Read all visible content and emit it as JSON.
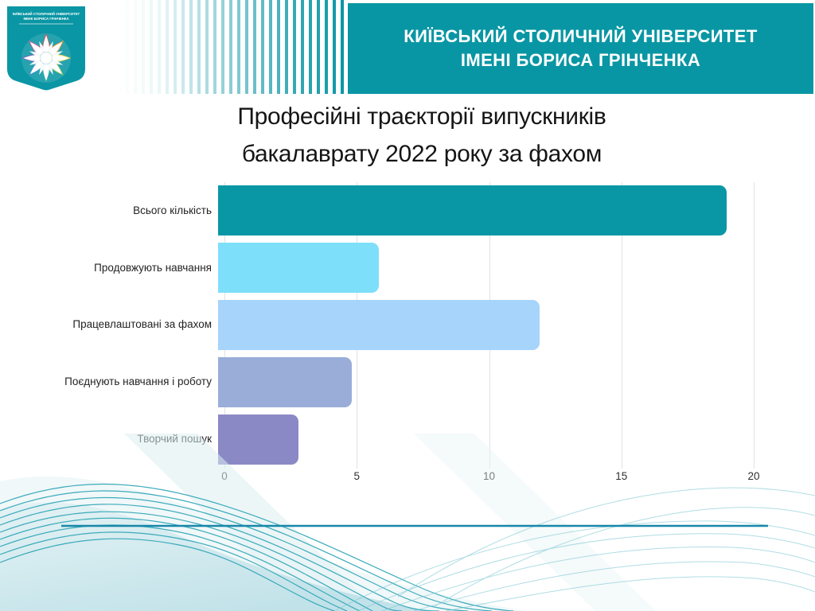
{
  "header": {
    "band": {
      "line1": "КИЇВСЬКИЙ СТОЛИЧНИЙ УНІВЕРСИТЕТ",
      "line2": "ІМЕНІ БОРИСА ГРІНЧЕНКА",
      "background_color": "#0996a4",
      "text_color": "#ffffff"
    },
    "logo": {
      "text_line1": "КИЇВСЬКИЙ СТОЛИЧНИЙ УНІВЕРСИТЕТ",
      "text_line2": "ІМЕНІ БОРИСА ГРІНЧЕНКА",
      "emblem_icon": "starburst-emblem",
      "shield_color": "#0a96a4"
    }
  },
  "slide": {
    "title_line1": "Професійні траєкторії випускників",
    "title_line2": "бакалаврату 2022 року за фахом"
  },
  "chart_data": {
    "type": "bar",
    "orientation": "horizontal",
    "title": "Професійні траєкторії випускників бакалаврату 2022 року за фахом",
    "categories": [
      "Всього кількість",
      "Продовжують навчання",
      "Працевлаштовані за фахом",
      "Поєднують навчання і роботу",
      "Творчий пошук"
    ],
    "values": [
      19,
      6,
      12,
      5,
      3
    ],
    "bar_colors": [
      "#0997a5",
      "#7edffb",
      "#a6d4fa",
      "#99add8",
      "#8b89c5"
    ],
    "xlabel": "",
    "ylabel": "",
    "xlim": [
      0,
      20
    ],
    "x_ticks": [
      "0",
      "5",
      "10",
      "15",
      "20"
    ],
    "grid": true,
    "legend": false
  },
  "decor": {
    "wave_line_color": "#2aa3b5",
    "wave_light_color": "#7cc8d3",
    "divider_line_color": "#1787a9",
    "fill_light": "#d8ecef",
    "fill_lighter": "#e6f3f5"
  }
}
